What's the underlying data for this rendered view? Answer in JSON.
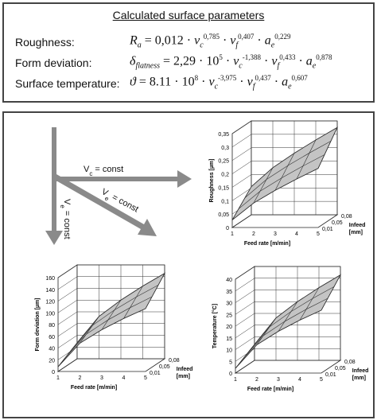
{
  "header": {
    "title": "Calculated surface parameters",
    "rows": [
      {
        "label": "Roughness:",
        "lhs": "R",
        "lhs_sub": "a",
        "eq": " = 0,012 · ",
        "t1": "v",
        "t1_sub": "c",
        "t1_exp": "0,785",
        "t2": "v",
        "t2_sub": "f",
        "t2_exp": "0,407",
        "t3": "a",
        "t3_sub": "e",
        "t3_exp": "0,229"
      },
      {
        "label": "Form deviation:",
        "lhs": "δ",
        "lhs_sub": "flatness",
        "eq": " = 2,29 · 10",
        "eq_exp": "5",
        "t1": "v",
        "t1_sub": "c",
        "t1_exp": "-1,388",
        "t2": "v",
        "t2_sub": "f",
        "t2_exp": "0,433",
        "t3": "a",
        "t3_sub": "e",
        "t3_exp": "0,878"
      },
      {
        "label": "Surface temperature:",
        "lhs": "ϑ",
        "lhs_sub": "",
        "eq": " = 8.11 · 10",
        "eq_exp": "8",
        "t1": "v",
        "t1_sub": "c",
        "t1_exp": "-3,975",
        "t2": "v",
        "t2_sub": "f",
        "t2_exp": "0,437",
        "t3": "a",
        "t3_sub": "e",
        "t3_exp": "0,607"
      }
    ]
  },
  "arrows": {
    "vc_const": "V",
    "vc_sub": "c",
    "vc_rest": " = const",
    "ve_const": "V",
    "ve_sub": "e",
    "ve_rest": " = const"
  },
  "charts": [
    {
      "id": "roughness",
      "ylabel": "Roughness [µm]",
      "xlabel": "Feed rate [m/min]",
      "zlabel": "Infeed [mm]",
      "yticks": [
        "0",
        "0,05",
        "0,1",
        "0,15",
        "0,2",
        "0,25",
        "0,3",
        "0,35"
      ],
      "xticks": [
        "1",
        "2",
        "3",
        "4",
        "5"
      ],
      "zticks": [
        "0,01",
        "0,05",
        "0,08"
      ]
    },
    {
      "id": "form-deviation",
      "ylabel": "Form deviation [µm]",
      "xlabel": "Feed rate [m/min]",
      "zlabel": "Infeed [mm]",
      "yticks": [
        "0",
        "20",
        "40",
        "60",
        "80",
        "100",
        "120",
        "140",
        "160"
      ],
      "xticks": [
        "1",
        "2",
        "3",
        "4",
        "5"
      ],
      "zticks": [
        "0,01",
        "0,05",
        "0,08"
      ]
    },
    {
      "id": "temperature",
      "ylabel": "Temperature [°C]",
      "xlabel": "Feed rate [m/min]",
      "zlabel": "Infeed [mm]",
      "yticks": [
        "0",
        "5",
        "10",
        "15",
        "20",
        "25",
        "30",
        "35",
        "40"
      ],
      "xticks": [
        "1",
        "2",
        "3",
        "4",
        "5"
      ],
      "zticks": [
        "0,01",
        "0,05",
        "0,08"
      ]
    }
  ],
  "colors": {
    "surface": "#c4c4c4",
    "arrow": "#8a8a8a",
    "border": "#444444"
  }
}
